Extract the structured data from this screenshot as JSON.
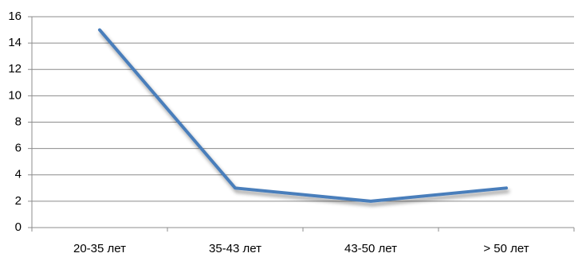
{
  "chart_data": {
    "type": "line",
    "categories": [
      "20-35 лет",
      "35-43 лет",
      "43-50 лет",
      "> 50 лет"
    ],
    "values": [
      15,
      3,
      2,
      3
    ],
    "color": "#4a7ebb",
    "ylim": [
      0,
      16
    ],
    "yticks": [
      0,
      2,
      4,
      6,
      8,
      10,
      12,
      14,
      16
    ],
    "grid": true
  }
}
